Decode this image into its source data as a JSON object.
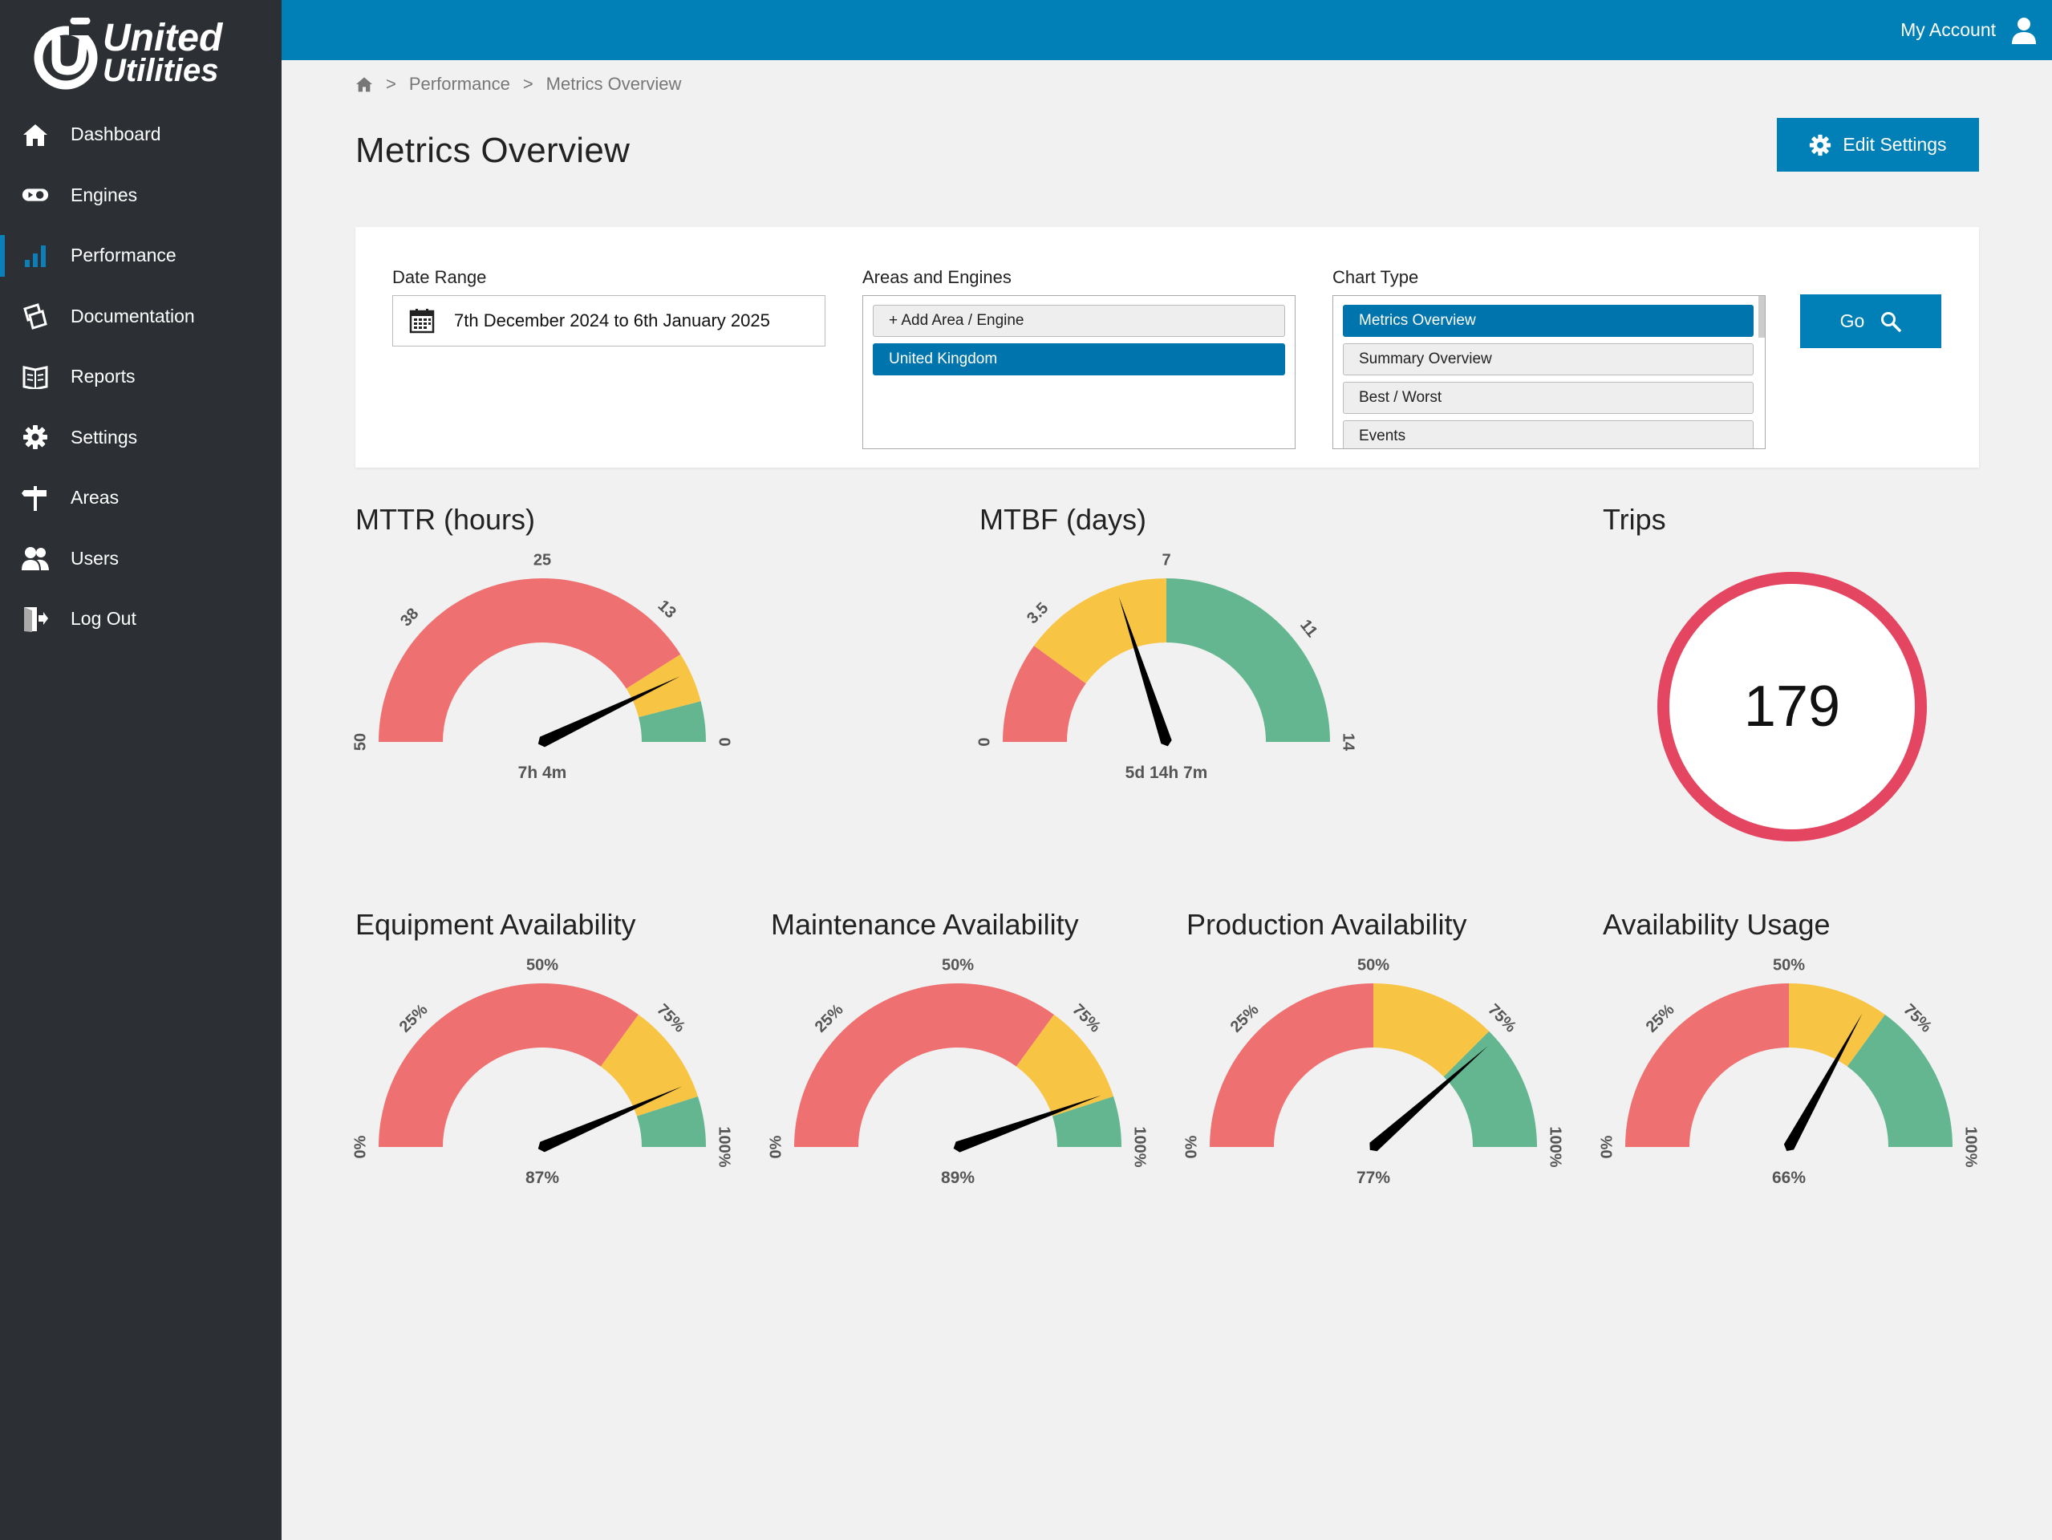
{
  "brand": {
    "line1": "United",
    "line2": "Utilities"
  },
  "sidebar": {
    "items": [
      {
        "label": "Dashboard",
        "icon": "home-icon"
      },
      {
        "label": "Engines",
        "icon": "engine-icon"
      },
      {
        "label": "Performance",
        "icon": "bar-chart-icon",
        "active": true
      },
      {
        "label": "Documentation",
        "icon": "documentation-icon"
      },
      {
        "label": "Reports",
        "icon": "reports-icon"
      },
      {
        "label": "Settings",
        "icon": "gear-icon"
      },
      {
        "label": "Areas",
        "icon": "signpost-icon"
      },
      {
        "label": "Users",
        "icon": "users-icon"
      },
      {
        "label": "Log Out",
        "icon": "logout-icon"
      }
    ]
  },
  "header": {
    "account_label": "My Account"
  },
  "breadcrumb": {
    "items": [
      "Performance",
      "Metrics Overview"
    ]
  },
  "page": {
    "title": "Metrics Overview",
    "edit_settings_label": "Edit Settings"
  },
  "filters": {
    "date_range": {
      "label": "Date Range",
      "value": "7th December 2024 to 6th January 2025"
    },
    "areas": {
      "label": "Areas and Engines",
      "items": [
        "+ Add Area / Engine",
        "United Kingdom"
      ],
      "selected": "United Kingdom"
    },
    "chart_type": {
      "label": "Chart Type",
      "items": [
        "Metrics Overview",
        "Summary Overview",
        "Best / Worst",
        "Events"
      ],
      "selected": "Metrics Overview"
    },
    "go_label": "Go"
  },
  "colors": {
    "red": "#ef7070",
    "yellow": "#f8c443",
    "green": "#63b68f",
    "accent": "#0080b6",
    "trips_ring": "#e44561",
    "sidebar": "#2c3034"
  },
  "gauges": {
    "mttr": {
      "title": "MTTR (hours)",
      "min": 0,
      "max": 50,
      "reversed": true,
      "ticks": [
        {
          "v": 50,
          "label": "50"
        },
        {
          "v": 38,
          "label": "38"
        },
        {
          "v": 25,
          "label": "25"
        },
        {
          "v": 13,
          "label": "13"
        },
        {
          "v": 0,
          "label": "0"
        }
      ],
      "bands": [
        {
          "from": 0,
          "to": 4,
          "color": "green"
        },
        {
          "from": 4,
          "to": 9,
          "color": "yellow"
        },
        {
          "from": 9,
          "to": 50,
          "color": "red"
        }
      ],
      "value": 7.07,
      "value_label": "7h 4m"
    },
    "mtbf": {
      "title": "MTBF (days)",
      "min": 0,
      "max": 14,
      "reversed": false,
      "ticks": [
        {
          "v": 0,
          "label": "0"
        },
        {
          "v": 3.5,
          "label": "3.5"
        },
        {
          "v": 7,
          "label": "7"
        },
        {
          "v": 11,
          "label": "11"
        },
        {
          "v": 14,
          "label": "14"
        }
      ],
      "bands": [
        {
          "from": 0,
          "to": 2.8,
          "color": "red"
        },
        {
          "from": 2.8,
          "to": 7,
          "color": "yellow"
        },
        {
          "from": 7,
          "to": 14,
          "color": "green"
        }
      ],
      "value": 5.59,
      "value_label": "5d 14h 7m"
    },
    "trips": {
      "title": "Trips",
      "value": "179"
    },
    "equipment": {
      "title": "Equipment Availability",
      "min": 0,
      "max": 100,
      "reversed": false,
      "ticks": [
        {
          "v": 0,
          "label": "0%"
        },
        {
          "v": 25,
          "label": "25%"
        },
        {
          "v": 50,
          "label": "50%"
        },
        {
          "v": 75,
          "label": "75%"
        },
        {
          "v": 100,
          "label": "100%"
        }
      ],
      "bands": [
        {
          "from": 0,
          "to": 70,
          "color": "red"
        },
        {
          "from": 70,
          "to": 90,
          "color": "yellow"
        },
        {
          "from": 90,
          "to": 100,
          "color": "green"
        }
      ],
      "value": 87,
      "value_label": "87%"
    },
    "maintenance": {
      "title": "Maintenance Availability",
      "min": 0,
      "max": 100,
      "reversed": false,
      "ticks": [
        {
          "v": 0,
          "label": "0%"
        },
        {
          "v": 25,
          "label": "25%"
        },
        {
          "v": 50,
          "label": "50%"
        },
        {
          "v": 75,
          "label": "75%"
        },
        {
          "v": 100,
          "label": "100%"
        }
      ],
      "bands": [
        {
          "from": 0,
          "to": 70,
          "color": "red"
        },
        {
          "from": 70,
          "to": 90,
          "color": "yellow"
        },
        {
          "from": 90,
          "to": 100,
          "color": "green"
        }
      ],
      "value": 89,
      "value_label": "89%"
    },
    "production": {
      "title": "Production Availability",
      "min": 0,
      "max": 100,
      "reversed": false,
      "ticks": [
        {
          "v": 0,
          "label": "0%"
        },
        {
          "v": 25,
          "label": "25%"
        },
        {
          "v": 50,
          "label": "50%"
        },
        {
          "v": 75,
          "label": "75%"
        },
        {
          "v": 100,
          "label": "100%"
        }
      ],
      "bands": [
        {
          "from": 0,
          "to": 50,
          "color": "red"
        },
        {
          "from": 50,
          "to": 75,
          "color": "yellow"
        },
        {
          "from": 75,
          "to": 100,
          "color": "green"
        }
      ],
      "value": 77,
      "value_label": "77%"
    },
    "usage": {
      "title": "Availability Usage",
      "min": 0,
      "max": 100,
      "reversed": false,
      "ticks": [
        {
          "v": 0,
          "label": "0%"
        },
        {
          "v": 25,
          "label": "25%"
        },
        {
          "v": 50,
          "label": "50%"
        },
        {
          "v": 75,
          "label": "75%"
        },
        {
          "v": 100,
          "label": "100%"
        }
      ],
      "bands": [
        {
          "from": 0,
          "to": 50,
          "color": "red"
        },
        {
          "from": 50,
          "to": 70,
          "color": "yellow"
        },
        {
          "from": 70,
          "to": 100,
          "color": "green"
        }
      ],
      "value": 66,
      "value_label": "66%"
    }
  }
}
